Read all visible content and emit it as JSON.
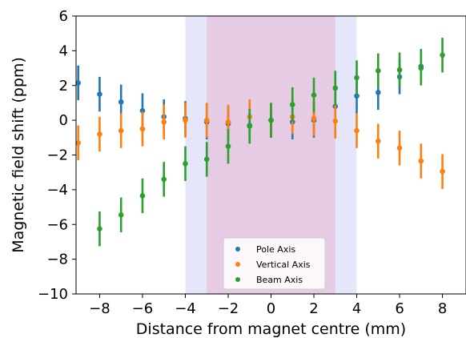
{
  "chart_data": {
    "type": "scatter",
    "xlabel": "Distance from magnet centre (mm)",
    "ylabel": "Magnetic field shift (ppm)",
    "xlim": [
      -9.1,
      9.1
    ],
    "ylim": [
      -10,
      6
    ],
    "xticks": [
      -8,
      -6,
      -4,
      -2,
      0,
      2,
      4,
      6,
      8
    ],
    "xtick_labels": [
      "−8",
      "−6",
      "−4",
      "−2",
      "0",
      "2",
      "4",
      "6",
      "8"
    ],
    "yticks": [
      -10,
      -8,
      -6,
      -4,
      -2,
      0,
      2,
      4,
      6
    ],
    "ytick_labels": [
      "−10",
      "−8",
      "−6",
      "−4",
      "−2",
      "0",
      "2",
      "4",
      "6"
    ],
    "grid": false,
    "legend_position": "lower-center",
    "shaded_regions": [
      {
        "x": [
          -4,
          4
        ],
        "color": "#e6e6fb"
      },
      {
        "x": [
          -3,
          3
        ],
        "color": "#e5cbe4"
      }
    ],
    "series": [
      {
        "name": "Pole Axis",
        "color": "#1f77b4",
        "x": [
          -9,
          -8,
          -7,
          -6,
          -5,
          -4,
          -3,
          -2,
          -1,
          0,
          1,
          2,
          3,
          4,
          5,
          6,
          7,
          8
        ],
        "y": [
          2.15,
          1.5,
          1.05,
          0.55,
          0.2,
          0.1,
          -0.1,
          -0.2,
          -0.3,
          0.0,
          -0.1,
          0.0,
          0.8,
          1.4,
          1.6,
          2.5,
          3.1,
          null
        ],
        "err": [
          1.0,
          1.0,
          1.0,
          1.0,
          1.0,
          1.0,
          1.0,
          1.0,
          1.0,
          1.0,
          1.0,
          1.0,
          1.0,
          1.0,
          1.0,
          1.0,
          1.0,
          null
        ]
      },
      {
        "name": "Vertical Axis",
        "color": "#ff7f0e",
        "x": [
          -9,
          -8,
          -7,
          -6,
          -5,
          -4,
          -3,
          -2,
          -1,
          0,
          1,
          2,
          3,
          4,
          5,
          6,
          7,
          8
        ],
        "y": [
          -1.3,
          -0.8,
          -0.6,
          -0.5,
          -0.1,
          0.0,
          0.0,
          -0.1,
          0.2,
          0.0,
          0.2,
          0.1,
          -0.05,
          -0.6,
          -1.2,
          -1.6,
          -2.35,
          -2.95
        ],
        "err": [
          1.0,
          1.0,
          1.0,
          1.0,
          1.0,
          1.0,
          1.0,
          1.0,
          1.0,
          1.0,
          1.0,
          1.0,
          1.0,
          1.0,
          1.0,
          1.0,
          1.0,
          1.0
        ]
      },
      {
        "name": "Beam Axis",
        "color": "#2ca02c",
        "x": [
          -8,
          -7,
          -6,
          -5,
          -4,
          -3,
          -2,
          -1,
          0,
          1,
          2,
          3,
          4,
          5,
          6,
          7,
          8
        ],
        "y": [
          -6.25,
          -5.45,
          -4.35,
          -3.4,
          -2.5,
          -2.25,
          -1.5,
          -0.35,
          0.0,
          0.9,
          1.45,
          1.85,
          2.45,
          2.85,
          2.9,
          3.0,
          3.75
        ],
        "err": [
          1.0,
          1.0,
          1.0,
          1.0,
          1.0,
          1.0,
          1.0,
          1.0,
          1.0,
          1.0,
          1.0,
          1.0,
          1.0,
          1.0,
          1.0,
          1.0,
          1.0
        ]
      }
    ]
  }
}
